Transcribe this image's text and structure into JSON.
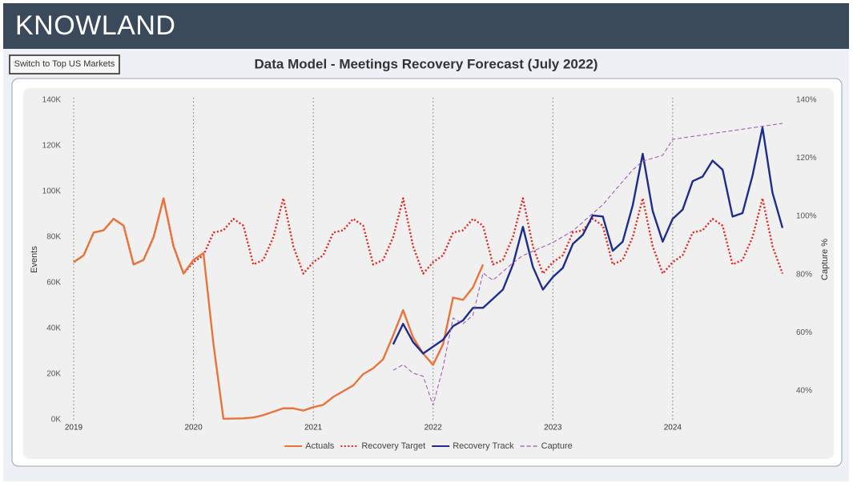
{
  "header": {
    "title": "KNOWLAND"
  },
  "button": {
    "label": "Switch to Top US Markets"
  },
  "chart_data": {
    "type": "line",
    "title": "Data Model - Meetings Recovery Forecast (July 2022)",
    "y_label": "Events",
    "y2_label": "Capture %",
    "x": [
      2019,
      2019.083,
      2019.167,
      2019.25,
      2019.333,
      2019.417,
      2019.5,
      2019.583,
      2019.667,
      2019.75,
      2019.833,
      2019.917,
      2020,
      2020.083,
      2020.167,
      2020.25,
      2020.333,
      2020.417,
      2020.5,
      2020.583,
      2020.667,
      2020.75,
      2020.833,
      2020.917,
      2021,
      2021.083,
      2021.167,
      2021.25,
      2021.333,
      2021.417,
      2021.5,
      2021.583,
      2021.667,
      2021.75,
      2021.833,
      2021.917,
      2022,
      2022.083,
      2022.167,
      2022.25,
      2022.333,
      2022.417,
      2022.5,
      2022.583,
      2022.667,
      2022.75,
      2022.833,
      2022.917,
      2023,
      2023.083,
      2023.167,
      2023.25,
      2023.333,
      2023.417,
      2023.5,
      2023.583,
      2023.667,
      2023.75,
      2023.833,
      2023.917,
      2024,
      2024.083,
      2024.167,
      2024.25,
      2024.333,
      2024.417,
      2024.5,
      2024.583,
      2024.667,
      2024.75,
      2024.833,
      2024.917
    ],
    "xlim": [
      2019,
      2024.917
    ],
    "xticks": [
      2019,
      2020,
      2021,
      2022,
      2023,
      2024
    ],
    "ylim": [
      0,
      140000
    ],
    "yticks": [
      {
        "value": 0,
        "label": "0K"
      },
      {
        "value": 20000,
        "label": "20K"
      },
      {
        "value": 40000,
        "label": "40K"
      },
      {
        "value": 60000,
        "label": "60K"
      },
      {
        "value": 80000,
        "label": "80K"
      },
      {
        "value": 100000,
        "label": "100K"
      },
      {
        "value": 120000,
        "label": "120K"
      },
      {
        "value": 140000,
        "label": "140K"
      }
    ],
    "y2lim": [
      30,
      140
    ],
    "y2ticks": [
      {
        "value": 40,
        "label": "40%"
      },
      {
        "value": 60,
        "label": "60%"
      },
      {
        "value": 80,
        "label": "80%"
      },
      {
        "value": 100,
        "label": "100%"
      },
      {
        "value": 120,
        "label": "120%"
      },
      {
        "value": 140,
        "label": "140%"
      }
    ],
    "grid": true,
    "legend": "bottom",
    "series": [
      {
        "name": "Actuals",
        "color": "#e8743b",
        "style": "solid",
        "values": [
          69000,
          72000,
          82000,
          83000,
          88000,
          85000,
          68000,
          70000,
          80000,
          97000,
          76000,
          64000,
          70000,
          73000,
          33000,
          400,
          500,
          600,
          1000,
          2000,
          3500,
          5000,
          5000,
          4000,
          5500,
          6500,
          10000,
          12500,
          15000,
          20000,
          22500,
          26500,
          37000,
          48000,
          36000,
          29000,
          24000,
          33000,
          53500,
          52500,
          58000,
          68000,
          null,
          null,
          null,
          null,
          null,
          null,
          null,
          null,
          null,
          null,
          null,
          null,
          null,
          null,
          null,
          null,
          null,
          null,
          null,
          null,
          null,
          null,
          null,
          null,
          null,
          null,
          null,
          null,
          null,
          null
        ]
      },
      {
        "name": "Recovery Target",
        "color": "#e4231b",
        "style": "dotted",
        "values": [
          69000,
          72000,
          82000,
          83000,
          88000,
          85000,
          68000,
          70000,
          80000,
          97000,
          76000,
          64000,
          69000,
          72000,
          82000,
          83000,
          88000,
          85000,
          68000,
          70000,
          80000,
          97000,
          76000,
          64000,
          69000,
          72000,
          82000,
          83000,
          88000,
          85000,
          68000,
          70000,
          80000,
          97000,
          76000,
          64000,
          69000,
          72000,
          82000,
          83000,
          88000,
          85000,
          68000,
          70000,
          80000,
          97000,
          76000,
          64000,
          69000,
          72000,
          82000,
          83000,
          88000,
          85000,
          68000,
          70000,
          80000,
          97000,
          76000,
          64000,
          69000,
          72000,
          82000,
          83000,
          88000,
          85000,
          68000,
          70000,
          80000,
          97000,
          76000,
          64000
        ]
      },
      {
        "name": "Recovery Track",
        "color": "#1f2d8a",
        "style": "solid",
        "values": [
          null,
          null,
          null,
          null,
          null,
          null,
          null,
          null,
          null,
          null,
          null,
          null,
          null,
          null,
          null,
          null,
          null,
          null,
          null,
          null,
          null,
          null,
          null,
          null,
          null,
          null,
          null,
          null,
          null,
          null,
          null,
          null,
          33000,
          42000,
          34000,
          29000,
          32000,
          35000,
          41000,
          43500,
          49000,
          49000,
          53000,
          57000,
          68000,
          84500,
          67000,
          57000,
          62500,
          66500,
          77000,
          81000,
          89500,
          89000,
          74000,
          78000,
          94000,
          116500,
          91500,
          78000,
          88000,
          92000,
          104500,
          106500,
          113500,
          109500,
          89000,
          90500,
          107000,
          128000,
          99500,
          84000
        ]
      },
      {
        "name": "Capture",
        "color": "#9b4fb3",
        "style": "dashed",
        "axis": "y2",
        "values": [
          null,
          null,
          null,
          null,
          null,
          null,
          null,
          null,
          null,
          null,
          null,
          null,
          null,
          null,
          null,
          null,
          null,
          null,
          null,
          null,
          null,
          null,
          null,
          null,
          null,
          null,
          null,
          null,
          null,
          null,
          null,
          null,
          47,
          49,
          46,
          45,
          35,
          48,
          65,
          63,
          66,
          80.5,
          78,
          81,
          84,
          86.5,
          88,
          89.5,
          91,
          93,
          95,
          98,
          101,
          104,
          108,
          112,
          116,
          119,
          120,
          121,
          126.5,
          127,
          127.5,
          128,
          128.5,
          129,
          129.5,
          130,
          130.5,
          131,
          131.5,
          132
        ]
      }
    ]
  }
}
